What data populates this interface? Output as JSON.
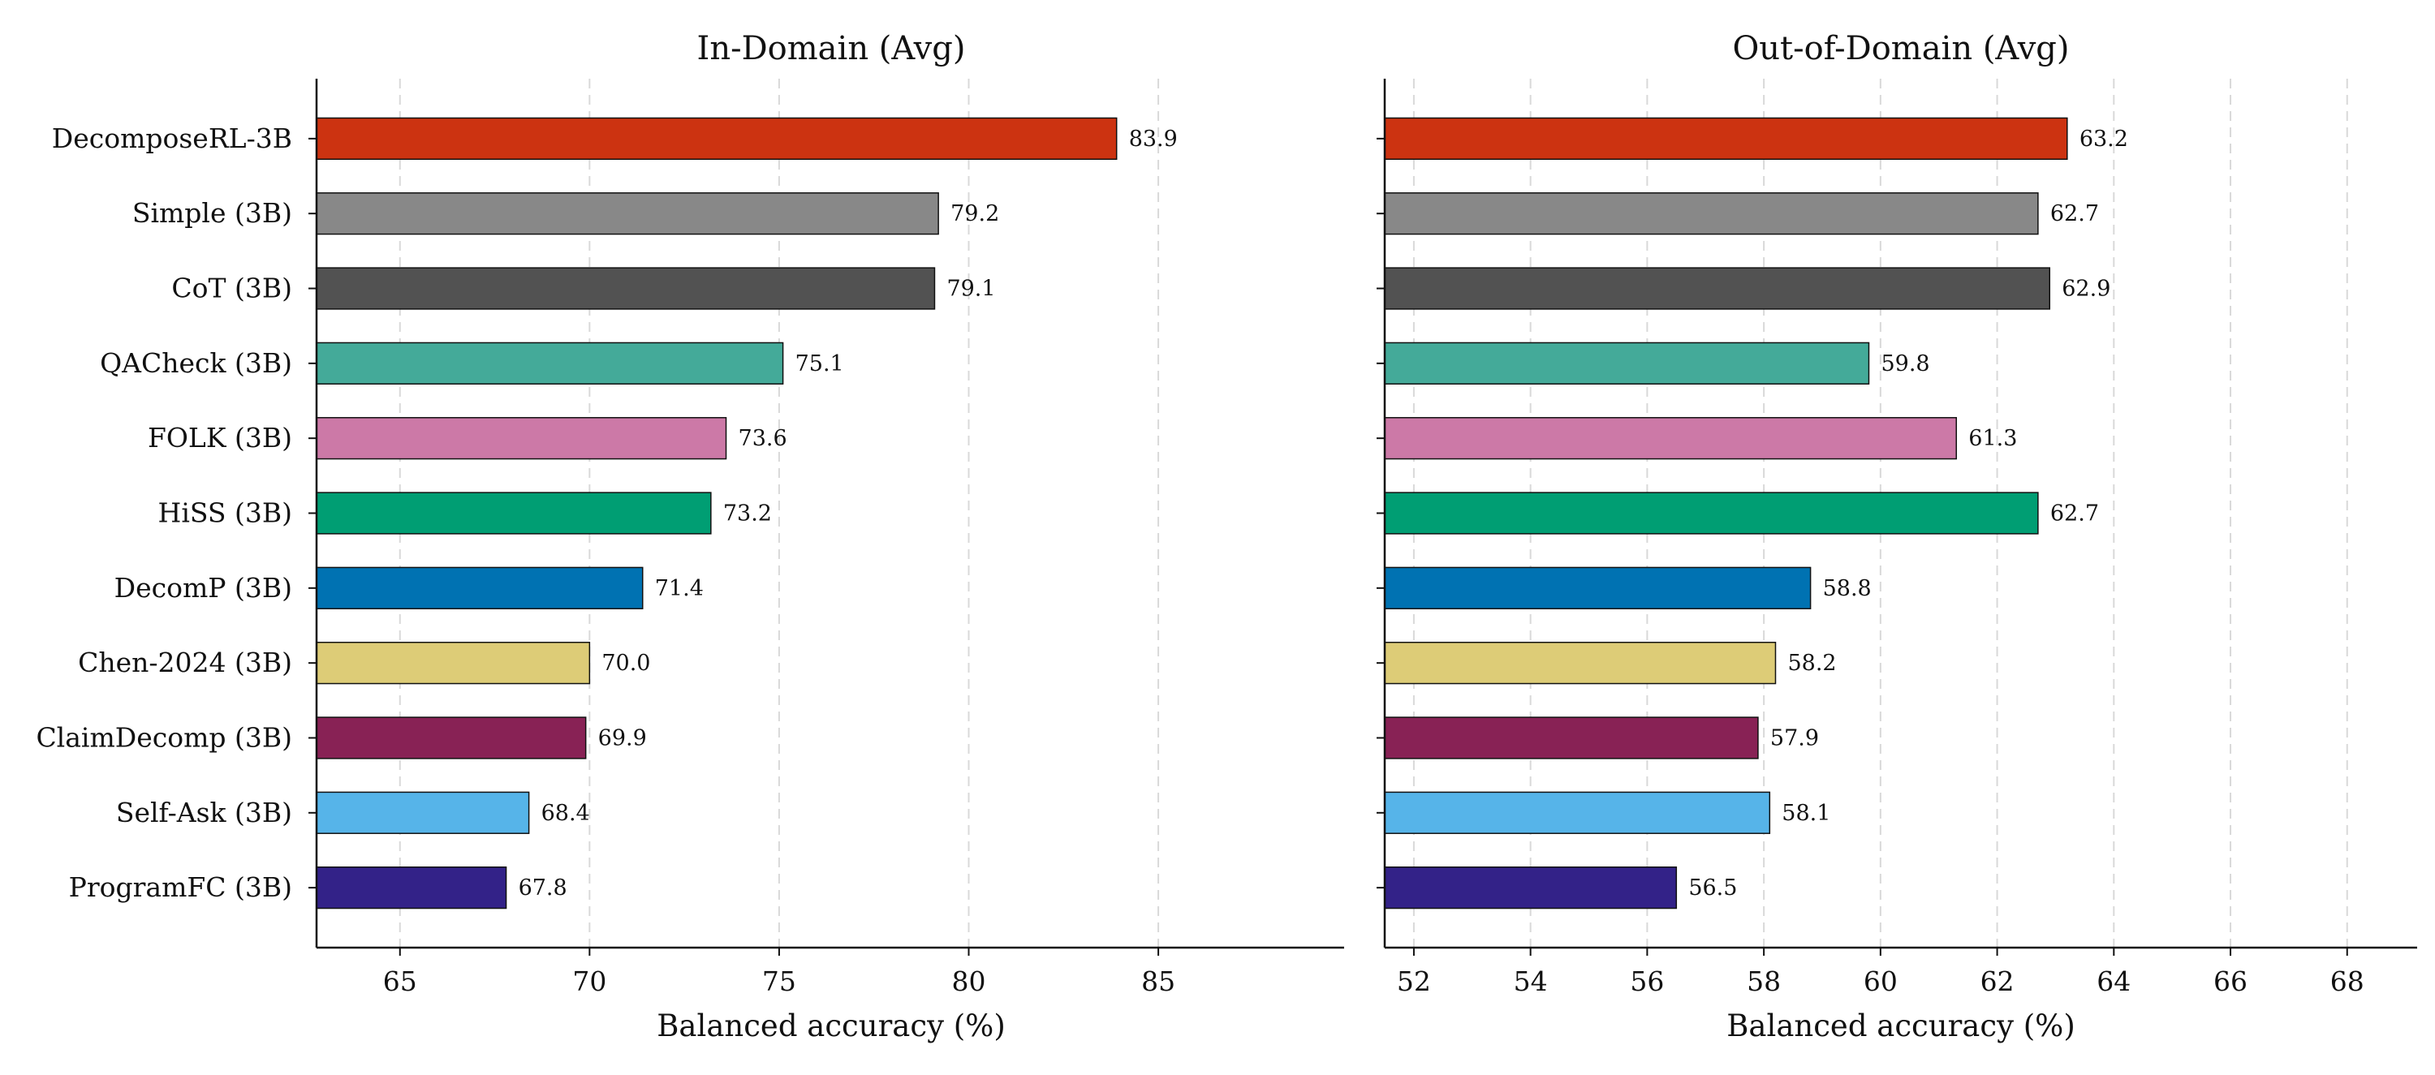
{
  "chart_data": [
    {
      "type": "bar",
      "orientation": "horizontal",
      "title": "In-Domain (Avg)",
      "xlabel": "Balanced accuracy (%)",
      "ylabel": "",
      "xlim": [
        62.8,
        89.9
      ],
      "xticks": [
        65,
        70,
        75,
        80,
        85
      ],
      "grid": "x-dashed",
      "categories": [
        "DecomposeRL-3B",
        "Simple (3B)",
        "CoT (3B)",
        "QACheck (3B)",
        "FOLK (3B)",
        "HiSS (3B)",
        "DecomP (3B)",
        "Chen-2024 (3B)",
        "ClaimDecomp (3B)",
        "Self-Ask (3B)",
        "ProgramFC (3B)"
      ],
      "values": [
        83.9,
        79.2,
        79.1,
        75.1,
        73.6,
        73.2,
        71.4,
        70.0,
        69.9,
        68.4,
        67.8
      ],
      "value_labels": [
        "83.9",
        "79.2",
        "79.1",
        "75.1",
        "73.6",
        "73.2",
        "71.4",
        "70.0",
        "69.9",
        "68.4",
        "67.8"
      ],
      "colors": [
        "#CC3311",
        "#888888",
        "#525252",
        "#44AA99",
        "#CC79A7",
        "#009E73",
        "#0072B2",
        "#DDCC77",
        "#882255",
        "#56B4E9",
        "#332288"
      ]
    },
    {
      "type": "bar",
      "orientation": "horizontal",
      "title": "Out-of-Domain (Avg)",
      "xlabel": "Balanced accuracy (%)",
      "ylabel": "",
      "xlim": [
        51.5,
        69.2
      ],
      "xticks": [
        52,
        54,
        56,
        58,
        60,
        62,
        64,
        66,
        68
      ],
      "grid": "x-dashed",
      "categories": [
        "DecomposeRL-3B",
        "Simple (3B)",
        "CoT (3B)",
        "QACheck (3B)",
        "FOLK (3B)",
        "HiSS (3B)",
        "DecomP (3B)",
        "Chen-2024 (3B)",
        "ClaimDecomp (3B)",
        "Self-Ask (3B)",
        "ProgramFC (3B)"
      ],
      "values": [
        63.2,
        62.7,
        62.9,
        59.8,
        61.3,
        62.7,
        58.8,
        58.2,
        57.9,
        58.1,
        56.5
      ],
      "value_labels": [
        "63.2",
        "62.7",
        "62.9",
        "59.8",
        "61.3",
        "62.7",
        "58.8",
        "58.2",
        "57.9",
        "58.1",
        "56.5"
      ],
      "colors": [
        "#CC3311",
        "#888888",
        "#525252",
        "#44AA99",
        "#CC79A7",
        "#009E73",
        "#0072B2",
        "#DDCC77",
        "#882255",
        "#56B4E9",
        "#332288"
      ]
    }
  ]
}
